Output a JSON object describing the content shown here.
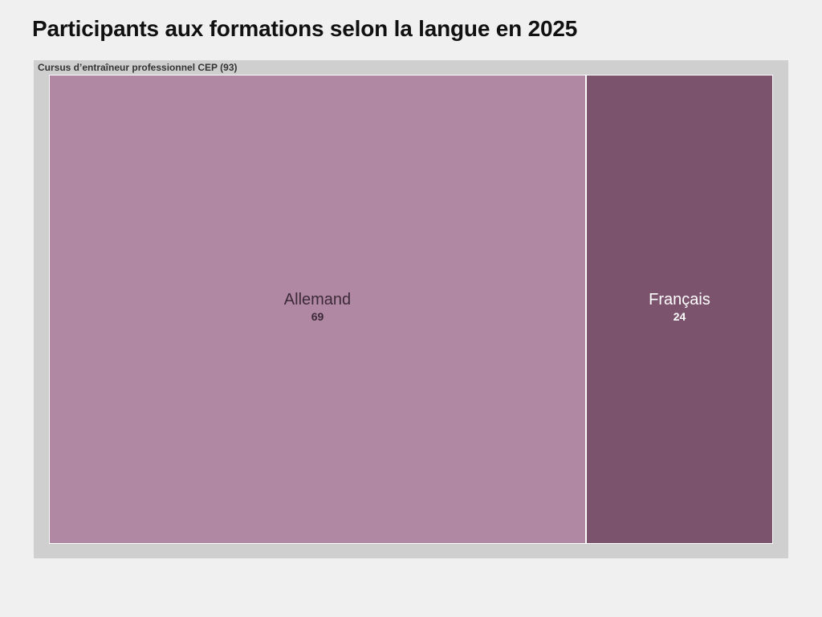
{
  "title": "Participants aux formations selon la langue en 2025",
  "chart_data": {
    "type": "treemap",
    "title": "Participants aux formations selon la langue en 2025",
    "groups": [
      {
        "label": "Cursus d’entraîneur professionnel CEP (93)",
        "total": 93,
        "items": [
          {
            "name": "Allemand",
            "value": 69,
            "color": "#b088a3",
            "text_color": "#3d2a38"
          },
          {
            "name": "Français",
            "value": 24,
            "color": "#7b536d",
            "text_color": "#ffffff"
          }
        ]
      }
    ]
  }
}
